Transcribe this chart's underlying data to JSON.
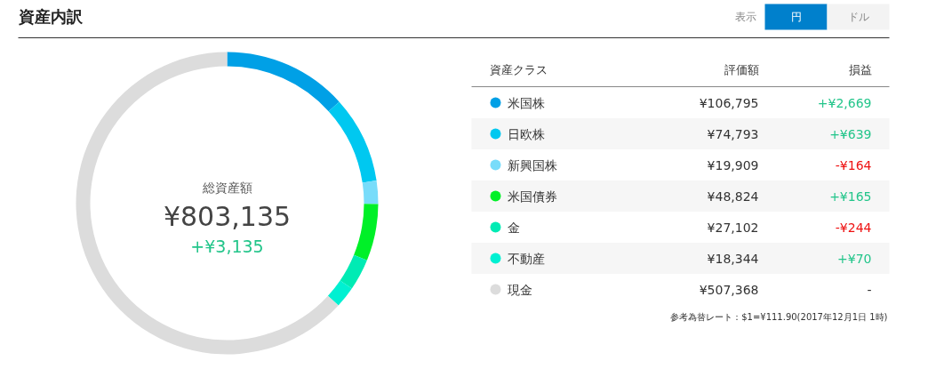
{
  "chart_data": {
    "type": "donut",
    "title": "資産内訳",
    "legend": "right",
    "categories": [
      "米国株",
      "日欧株",
      "新興国株",
      "米国債券",
      "金",
      "不動産",
      "現金"
    ],
    "values": [
      106795,
      74793,
      19909,
      48824,
      27102,
      18344,
      507368
    ],
    "colors": [
      "#00a0e6",
      "#00c8f0",
      "#78dcfa",
      "#00f028",
      "#00ebb4",
      "#00f0d2",
      "#dcdcdc"
    ],
    "value_labels": [
      "¥106,795",
      "¥74,793",
      "¥19,909",
      "¥48,824",
      "¥27,102",
      "¥18,344",
      "¥507,368"
    ],
    "annotations": [
      "表示",
      "円",
      "ドル",
      "総資産額",
      "¥803,135",
      "+¥3,135",
      "資産クラス",
      "評価額",
      "損益",
      "+¥2,669",
      "+¥639",
      "-¥164",
      "+¥165",
      "-¥244",
      "+¥70",
      "-",
      "参考為替レート：$1=¥111.90(2017年12月1日 1時)"
    ]
  }
}
